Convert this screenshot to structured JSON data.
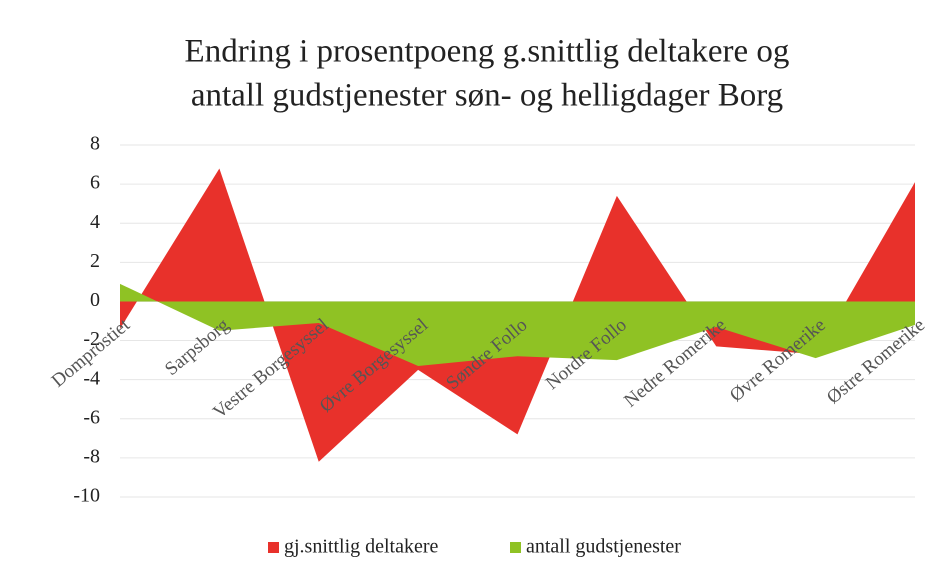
{
  "chart_data": {
    "type": "area",
    "title": [
      "Endring i prosentpoeng g.snittlig deltakere og",
      "antall gudstjenester søn- og helligdager Borg"
    ],
    "categories": [
      "Domprostiet",
      "Sarpsborg",
      "Vestre Borgesyssel",
      "Øvre Borgesyssel",
      "Søndre Follo",
      "Nordre Follo",
      "Nedre Romerike",
      "Øvre Romerike",
      "Østre Romerike"
    ],
    "series": [
      {
        "name": "gj.snittlig deltakere",
        "color": "#e8312b",
        "values": [
          -1.4,
          6.8,
          -8.2,
          -3.5,
          -6.8,
          5.4,
          -2.3,
          -2.7,
          6.1
        ]
      },
      {
        "name": "antall gudstjenester",
        "color": "#8fc224",
        "values": [
          0.9,
          -1.5,
          -1.1,
          -3.3,
          -2.8,
          -3.0,
          -1.3,
          -2.9,
          -1.2
        ]
      }
    ],
    "ylim": [
      -10,
      8
    ],
    "yticks": [
      8,
      6,
      4,
      2,
      0,
      -2,
      -4,
      -6,
      -8,
      -10
    ],
    "grid": true,
    "legend": "bottom"
  }
}
